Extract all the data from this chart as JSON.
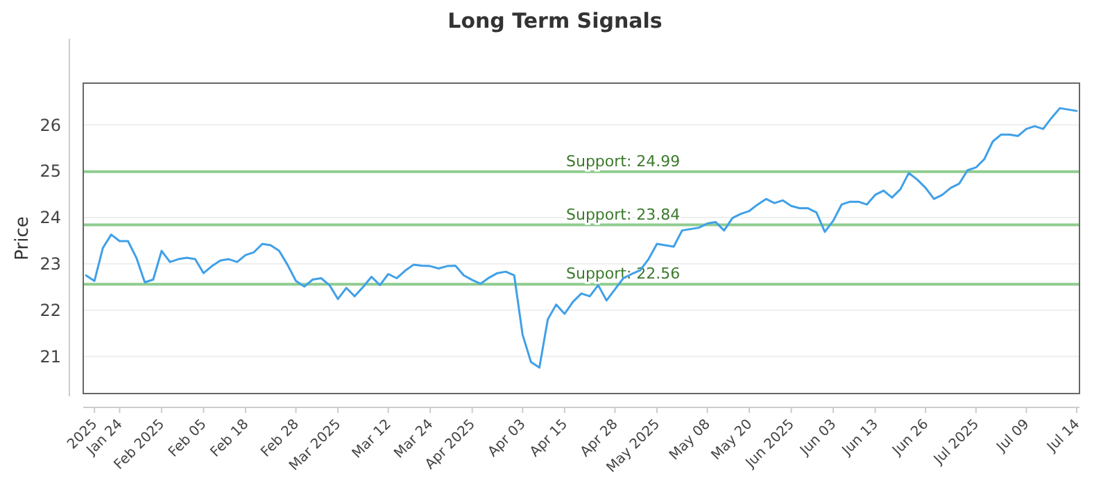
{
  "chart_data": {
    "type": "line",
    "title": "Long Term Signals",
    "ylabel": "Price",
    "categories": [
      null,
      "2025",
      null,
      null,
      "Jan 24",
      null,
      null,
      null,
      null,
      "Feb 2025",
      null,
      null,
      null,
      null,
      "Feb 05",
      null,
      null,
      null,
      null,
      "Feb 18",
      null,
      null,
      null,
      null,
      null,
      "Feb 28",
      null,
      null,
      null,
      null,
      "Mar 2025",
      null,
      null,
      null,
      null,
      null,
      "Mar 12",
      null,
      null,
      null,
      null,
      "Mar 24",
      null,
      null,
      null,
      null,
      "Apr 2025",
      null,
      null,
      null,
      null,
      null,
      "Apr 03",
      null,
      null,
      null,
      null,
      "Apr 15",
      null,
      null,
      null,
      null,
      null,
      "Apr 28",
      null,
      null,
      null,
      null,
      "May 2025",
      null,
      null,
      null,
      null,
      null,
      "May 08",
      null,
      null,
      null,
      null,
      "May 20",
      null,
      null,
      null,
      null,
      "Jun 2025",
      null,
      null,
      null,
      null,
      "Jun 03",
      null,
      null,
      null,
      null,
      "Jun 13",
      null,
      null,
      null,
      null,
      null,
      "Jun 26",
      null,
      null,
      null,
      null,
      null,
      "Jul 2025",
      null,
      null,
      null,
      null,
      null,
      "Jul 09",
      null,
      null,
      null,
      null,
      null,
      "Jul 14"
    ],
    "series": [
      {
        "color": "#3fa0e8",
        "values": [
          22.75,
          22.63,
          23.34,
          23.63,
          23.49,
          23.49,
          23.13,
          22.6,
          22.66,
          23.28,
          23.04,
          23.1,
          23.13,
          23.1,
          22.8,
          22.95,
          23.07,
          23.1,
          23.04,
          23.19,
          23.25,
          23.43,
          23.4,
          23.28,
          22.98,
          22.63,
          22.51,
          22.66,
          22.69,
          22.54,
          22.24,
          22.48,
          22.3,
          22.5,
          22.72,
          22.54,
          22.78,
          22.69,
          22.85,
          22.98,
          22.96,
          22.95,
          22.9,
          22.95,
          22.96,
          22.75,
          22.65,
          22.57,
          22.7,
          22.8,
          22.83,
          22.75,
          21.47,
          20.88,
          20.76,
          21.8,
          22.12,
          21.92,
          22.18,
          22.36,
          22.3,
          22.54,
          22.21,
          22.45,
          22.69,
          22.78,
          22.86,
          23.1,
          23.43,
          23.4,
          23.37,
          23.72,
          23.75,
          23.78,
          23.87,
          23.9,
          23.72,
          23.99,
          24.08,
          24.14,
          24.28,
          24.4,
          24.31,
          24.37,
          24.25,
          24.2,
          24.2,
          24.11,
          23.69,
          23.93,
          24.28,
          24.34,
          24.34,
          24.28,
          24.49,
          24.58,
          24.43,
          24.61,
          24.96,
          24.82,
          24.64,
          24.4,
          24.49,
          24.64,
          24.73,
          25.02,
          25.08,
          25.26,
          25.64,
          25.79,
          25.79,
          25.76,
          25.91,
          25.97,
          25.91,
          26.15,
          26.36,
          26.33,
          26.3
        ]
      }
    ],
    "ylim": [
      20.2,
      26.9
    ],
    "yticks": [
      21,
      22,
      23,
      24,
      25,
      26
    ],
    "grid": "y",
    "ref_lines": [
      {
        "axis": "y",
        "value": 24.99,
        "label": "Support: 24.99",
        "color": "#8fcc8f"
      },
      {
        "axis": "y",
        "value": 23.84,
        "label": "Support: 23.84",
        "color": "#8fcc8f"
      },
      {
        "axis": "y",
        "value": 22.56,
        "label": "Support: 22.56",
        "color": "#8fcc8f"
      }
    ]
  }
}
